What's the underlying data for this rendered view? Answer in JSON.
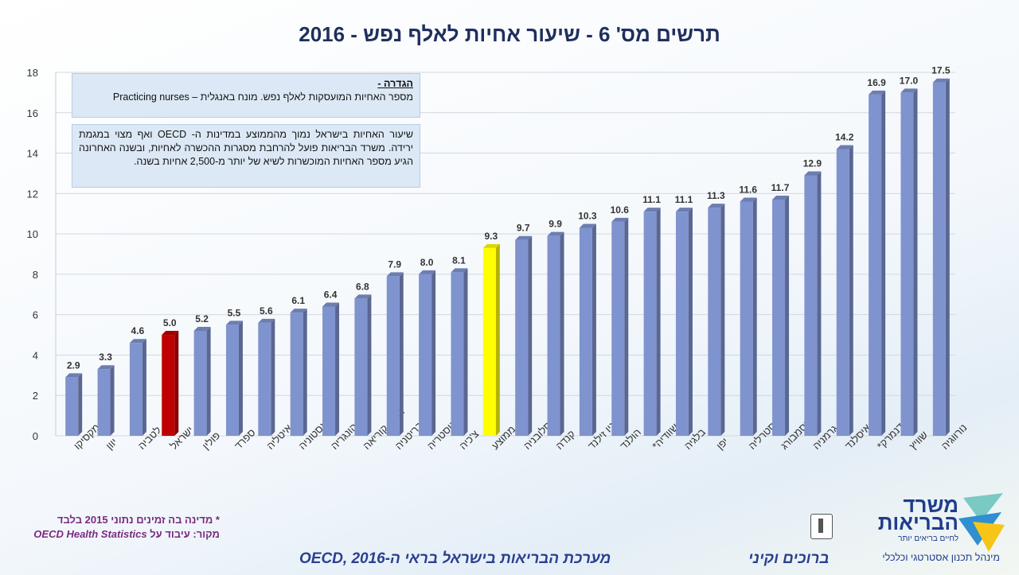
{
  "title": "תרשים מס' 6 - שיעור אחיות לאלף נפש - 2016",
  "notes": {
    "definition_head": "הגדרה -",
    "definition_body": "מספר האחיות המועסקות לאלף נפש. מונח באנגלית – Practicing nurses",
    "summary": "שיעור האחיות בישראל נמוך מהממוצע במדינות ה- OECD ואף מצוי במגמת ירידה. משרד הבריאות פועל להרחבת מסגרות ההכשרה לאחיות, ובשנה האחרונה הגיע מספר האחיות המוכשרות לשיא של יותר מ-2,500 אחיות בשנה."
  },
  "footnote_star": "* מדינה בה זמינים נתוני 2015 בלבד",
  "source_prefix": "מקור: עיבוד על",
  "source_name": "OECD Health Statistics",
  "bottom_center": "מערכת הבריאות בישראל בראי ה-OECD, 2016",
  "bottom_right": "ברוכים וקיני",
  "logo": {
    "title_line1": "משרד",
    "title_line2": "הבריאות",
    "tagline": "לחיים בריאים יותר",
    "department": "מינהל תכנון אסטרטגי וכלכלי"
  },
  "colors": {
    "bar_default": "#7f93cf",
    "bar_israel": "#c00000",
    "bar_average": "#ffff00",
    "title": "#1f2f5e"
  },
  "chart_data": {
    "type": "bar",
    "title": "תרשים מס' 6 - שיעור אחיות לאלף נפש - 2016",
    "xlabel": "",
    "ylabel": "",
    "ylim": [
      0,
      18
    ],
    "yticks": [
      0,
      2,
      4,
      6,
      8,
      10,
      12,
      14,
      16,
      18
    ],
    "grid": true,
    "categories": [
      "מקסיקו",
      "יוון",
      "לטביה",
      "ישראל",
      "פולין",
      "ספרד",
      "איטליה",
      "אסטוניה",
      "הונגריה",
      "דרום קוריאה",
      "בריטניה",
      "אוסטריה",
      "צ'כיה",
      "ממוצע",
      "סלובניה",
      "קנדה",
      "ניו זילנד",
      "הולנד",
      "שוודיה*",
      "בלגיה",
      "יפן",
      "אוסטרליה",
      "לוקסמבורג",
      "גרמניה",
      "איסלנד",
      "דנמרק*",
      "שוויץ",
      "נורווגיה"
    ],
    "values": [
      2.9,
      3.3,
      4.6,
      5.0,
      5.2,
      5.5,
      5.6,
      6.1,
      6.4,
      6.8,
      7.9,
      8.0,
      8.1,
      9.3,
      9.7,
      9.9,
      10.3,
      10.6,
      11.1,
      11.1,
      11.3,
      11.6,
      11.7,
      12.9,
      14.2,
      16.9,
      17.0,
      17.5
    ],
    "value_labels": [
      "2.9",
      "3.3",
      "4.6",
      "5.0",
      "5.2",
      "5.5",
      "5.6",
      "6.1",
      "6.4",
      "6.8",
      "7.9",
      "8.0",
      "8.1",
      "9.3",
      "9.7",
      "9.9",
      "10.3",
      "10.6",
      "11.1",
      "11.1",
      "11.3",
      "11.6",
      "11.7",
      "12.9",
      "14.2",
      "16.9",
      "17.0",
      "17.5"
    ],
    "highlights": {
      "ישראל": "israel",
      "ממוצע": "average"
    }
  }
}
